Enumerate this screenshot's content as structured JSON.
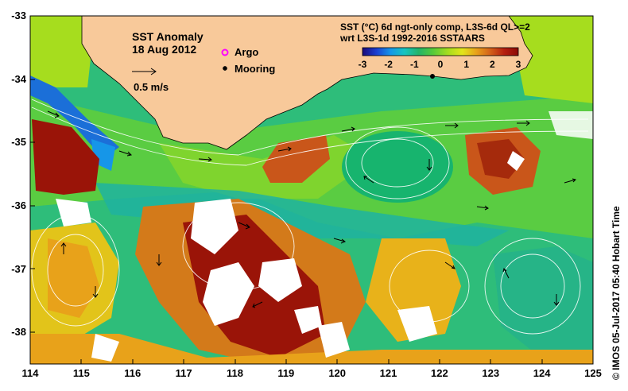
{
  "map": {
    "title": "SST Anomaly",
    "date": "18 Aug 2012",
    "product_line1": "SST (°C) 6d ngt-only comp, L3S-6d QL>=2",
    "product_line2": "wrt L3S-1d 1992-2016 SSTAARS",
    "scale_label": "0.5 m/s",
    "legend": {
      "argo_label": "Argo",
      "mooring_label": "Mooring",
      "argo_color": "#ff00ff",
      "mooring_color": "#000000"
    },
    "credit": "© IMOS 05-Jul-2017 05:40 Hobart Time",
    "x_ticks": [
      "114",
      "115",
      "116",
      "117",
      "118",
      "119",
      "120",
      "121",
      "122",
      "123",
      "124",
      "125"
    ],
    "y_ticks": [
      "-33",
      "-34",
      "-35",
      "-36",
      "-37",
      "-38"
    ],
    "lon_range": [
      114,
      125
    ],
    "lat_range": [
      -38.5,
      -33
    ],
    "colorbar": {
      "ticks": [
        "-3",
        "-2",
        "-1",
        "0",
        "1",
        "2",
        "3"
      ],
      "range": [
        -3,
        3
      ],
      "colors": [
        "#1a0a7a",
        "#1b3fd1",
        "#1696e8",
        "#17c5c0",
        "#22b46a",
        "#55c93a",
        "#a6dd1e",
        "#e2e51a",
        "#e8a21a",
        "#d3611a",
        "#b51f10",
        "#8b0a05"
      ]
    },
    "colors": {
      "land": "#f8c99a",
      "no_data": "#ffffff"
    }
  }
}
